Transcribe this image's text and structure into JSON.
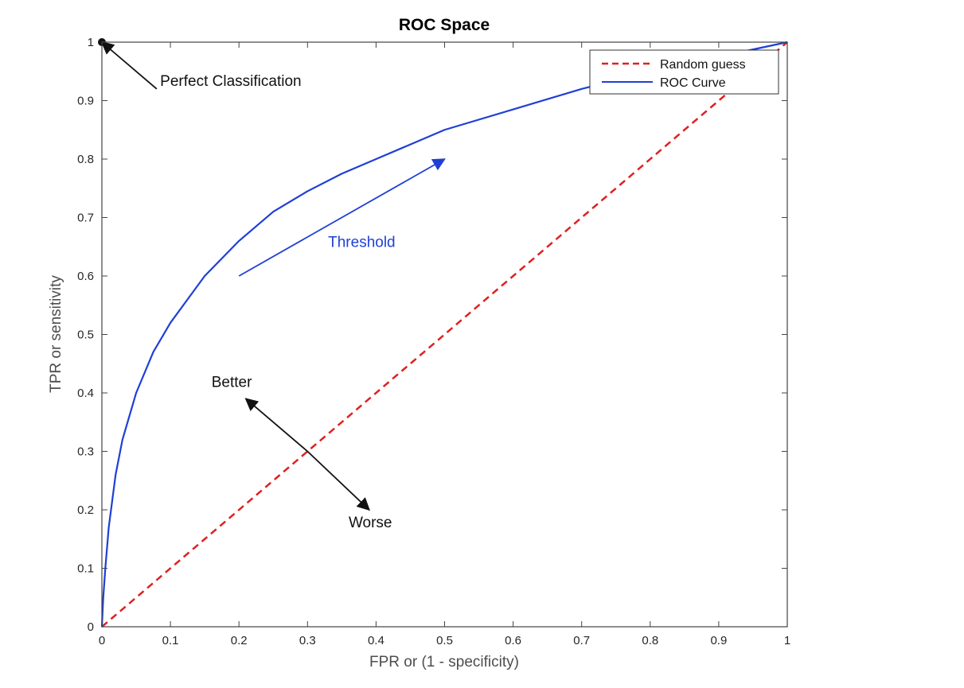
{
  "chart_data": {
    "type": "line",
    "title": "ROC Space",
    "xlabel": "FPR or (1 - specificity)",
    "ylabel": "TPR or sensitivity",
    "xlim": [
      0,
      1
    ],
    "ylim": [
      0,
      1
    ],
    "xticks": [
      "0",
      "0.1",
      "0.2",
      "0.3",
      "0.4",
      "0.5",
      "0.6",
      "0.7",
      "0.8",
      "0.9",
      "1"
    ],
    "yticks": [
      "0",
      "0.1",
      "0.2",
      "0.3",
      "0.4",
      "0.5",
      "0.6",
      "0.7",
      "0.8",
      "0.9",
      "1"
    ],
    "grid": false,
    "legend_position": "top-right",
    "series": [
      {
        "name": "Random guess",
        "style": "dashed",
        "color": "#e02020",
        "x": [
          0,
          1
        ],
        "y": [
          0,
          1
        ]
      },
      {
        "name": "ROC Curve",
        "style": "solid",
        "color": "#1f3fd6",
        "x": [
          0,
          0.002,
          0.005,
          0.01,
          0.02,
          0.03,
          0.05,
          0.075,
          0.1,
          0.15,
          0.2,
          0.25,
          0.3,
          0.35,
          0.4,
          0.5,
          0.6,
          0.7,
          0.8,
          0.9,
          1.0
        ],
        "y": [
          0,
          0.05,
          0.1,
          0.17,
          0.26,
          0.32,
          0.4,
          0.47,
          0.52,
          0.6,
          0.66,
          0.71,
          0.745,
          0.775,
          0.8,
          0.85,
          0.885,
          0.92,
          0.95,
          0.975,
          1.0
        ]
      }
    ],
    "annotations": [
      {
        "text": "Perfect Classification",
        "x": 0.085,
        "y": 0.925,
        "color": "#111111"
      },
      {
        "text": "Threshold",
        "x": 0.33,
        "y": 0.65,
        "color": "#1f3fd6"
      },
      {
        "text": "Better",
        "x": 0.16,
        "y": 0.41,
        "color": "#111111"
      },
      {
        "text": "Worse",
        "x": 0.36,
        "y": 0.17,
        "color": "#111111"
      }
    ],
    "arrows": [
      {
        "from": [
          0.08,
          0.92
        ],
        "to": [
          0.0,
          1.0
        ],
        "color": "#111111"
      },
      {
        "from": [
          0.2,
          0.6
        ],
        "to": [
          0.5,
          0.8
        ],
        "color": "#1f3fd6"
      },
      {
        "from": [
          0.3,
          0.3
        ],
        "to": [
          0.21,
          0.39
        ],
        "color": "#111111"
      },
      {
        "from": [
          0.3,
          0.3
        ],
        "to": [
          0.39,
          0.2
        ],
        "color": "#111111"
      }
    ],
    "markers": [
      {
        "x": 0,
        "y": 1,
        "color": "#111111"
      }
    ]
  }
}
